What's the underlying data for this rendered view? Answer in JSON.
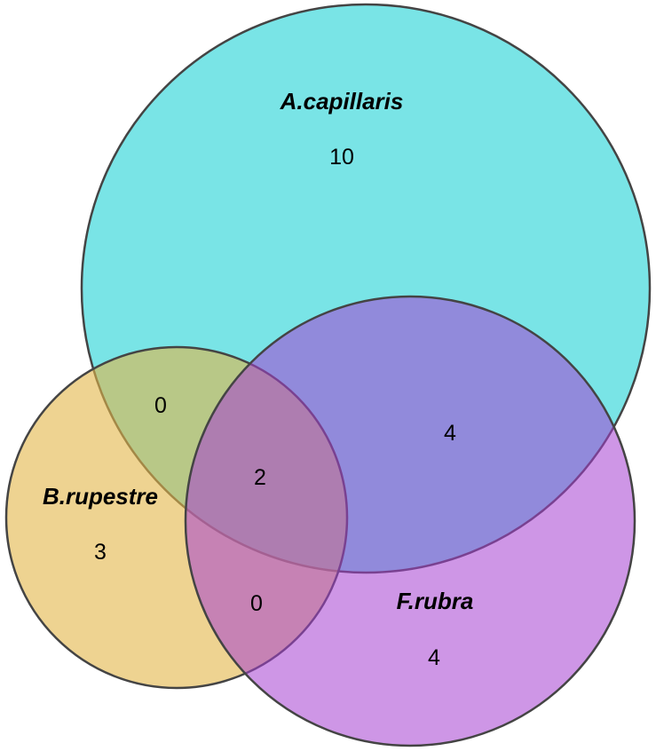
{
  "venn": {
    "sets": [
      {
        "key": "a",
        "label": "A.capillaris",
        "color": "#31d6d8"
      },
      {
        "key": "b",
        "label": "B.rupestre",
        "color": "#e2b647"
      },
      {
        "key": "c",
        "label": "F.rubra",
        "color": "#a53fd2"
      }
    ],
    "regions": {
      "a_only": "10",
      "a_b_only": "0",
      "a_c_only": "4",
      "a_b_c": "2",
      "b_only": "3",
      "b_c_only": "0",
      "c_only": "4"
    },
    "outline_color": "#444444"
  }
}
